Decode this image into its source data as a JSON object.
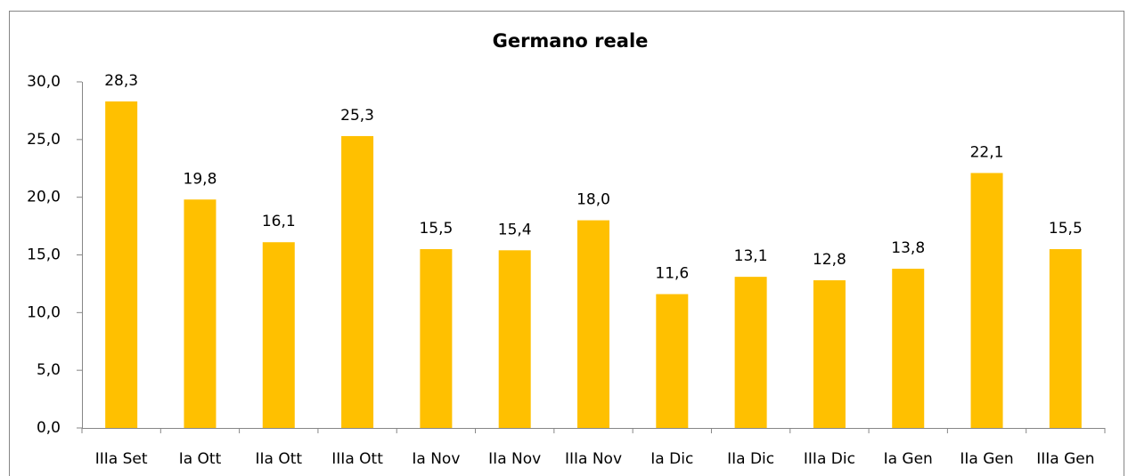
{
  "chart_data": {
    "type": "bar",
    "title": "Germano  reale",
    "categories": [
      "IIIa Set",
      "Ia Ott",
      "IIa Ott",
      "IIIa Ott",
      "Ia Nov",
      "IIa Nov",
      "IIIa Nov",
      "Ia Dic",
      "IIa Dic",
      "IIIa Dic",
      "Ia Gen",
      "IIa Gen",
      "IIIa Gen"
    ],
    "values": [
      28.3,
      19.8,
      16.1,
      25.3,
      15.5,
      15.4,
      18.0,
      11.6,
      13.1,
      12.8,
      13.8,
      22.1,
      15.5
    ],
    "value_labels": [
      "28,3",
      "19,8",
      "16,1",
      "25,3",
      "15,5",
      "15,4",
      "18,0",
      "11,6",
      "13,1",
      "12,8",
      "13,8",
      "22,1",
      "15,5"
    ],
    "color": "#ffc000",
    "ylim": [
      0,
      30
    ],
    "yticks": [
      {
        "value": 0,
        "label": "0,0"
      },
      {
        "value": 5,
        "label": "5,0"
      },
      {
        "value": 10,
        "label": "10,0"
      },
      {
        "value": 15,
        "label": "15,0"
      },
      {
        "value": 20,
        "label": "20,0"
      },
      {
        "value": 25,
        "label": "25,0"
      },
      {
        "value": 30,
        "label": "30,0"
      }
    ],
    "grid": false
  }
}
